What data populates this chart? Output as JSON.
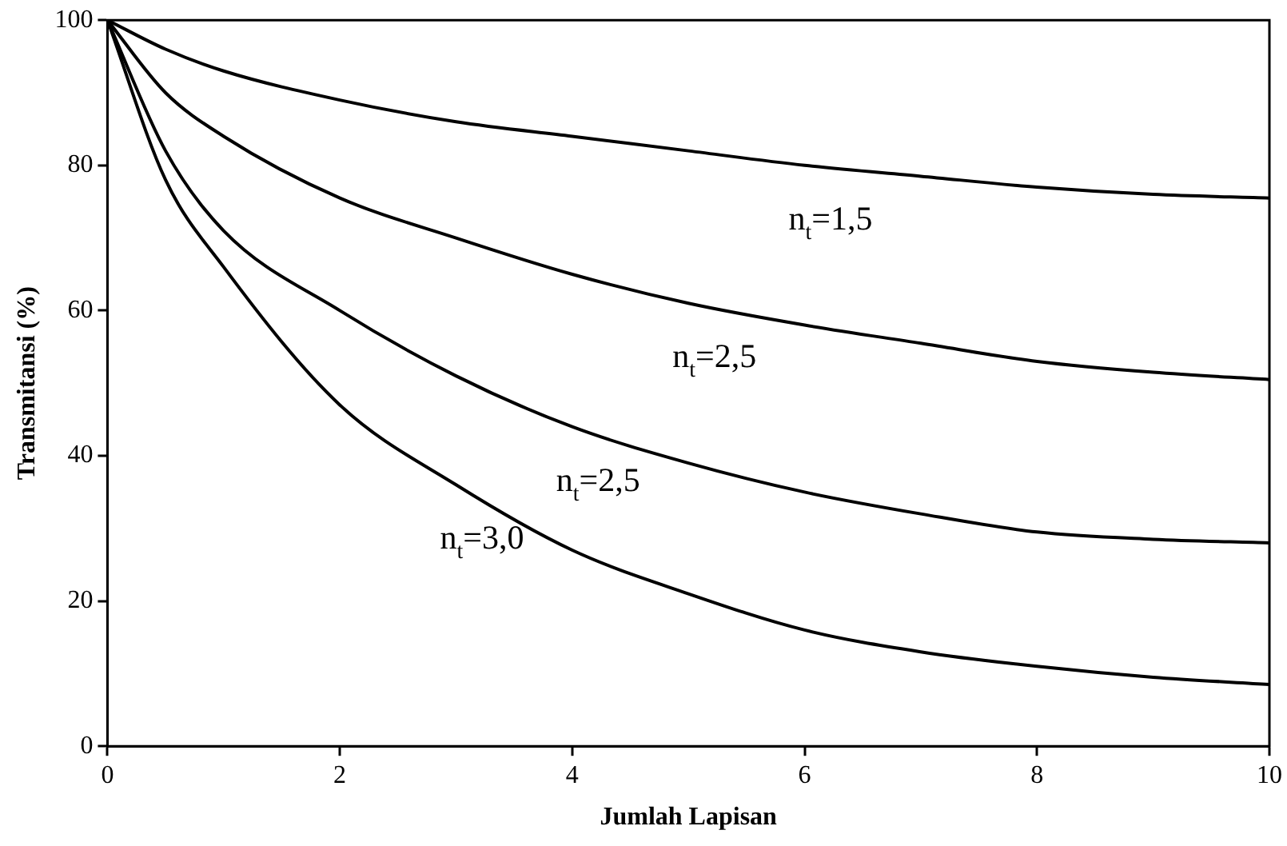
{
  "chart_data": {
    "type": "line",
    "xlabel": "Jumlah Lapisan",
    "ylabel": "Transmitansi (%)",
    "xlim": [
      0,
      10
    ],
    "ylim": [
      0,
      100
    ],
    "xticks": [
      0,
      2,
      4,
      6,
      8,
      10
    ],
    "yticks": [
      0,
      20,
      40,
      60,
      80,
      100
    ],
    "grid": false,
    "legend": false,
    "marker": "none",
    "line_style": "solid",
    "series": [
      {
        "name": "n$_{t}$=1,5",
        "color": "#000000",
        "x": [
          0,
          0.5,
          1,
          2,
          3,
          4,
          5,
          6,
          7,
          8,
          9,
          10
        ],
        "values": [
          100,
          96,
          93,
          89,
          86,
          84,
          82,
          80,
          78.5,
          77,
          76,
          75.5
        ]
      },
      {
        "name": "n$_{t}$=2,5",
        "color": "#000000",
        "x": [
          0,
          0.5,
          1,
          2,
          3,
          4,
          5,
          6,
          7,
          8,
          9,
          10
        ],
        "values": [
          100,
          90,
          84,
          75.5,
          70,
          65,
          61,
          58,
          55.5,
          53,
          51.5,
          50.5
        ]
      },
      {
        "name": "n$_{t}$=2,5",
        "color": "#000000",
        "x": [
          0,
          0.5,
          1,
          2,
          3,
          4,
          5,
          6,
          7,
          8,
          9,
          10
        ],
        "values": [
          100,
          82,
          71,
          60,
          51,
          44,
          39,
          35,
          32,
          29.5,
          28.5,
          28
        ]
      },
      {
        "name": "n$_{t}$=3,0",
        "color": "#000000",
        "x": [
          0,
          0.5,
          1,
          2,
          3,
          4,
          5,
          6,
          7,
          8,
          9,
          10
        ],
        "values": [
          100,
          78,
          66,
          47,
          36,
          27,
          21,
          16,
          13,
          11,
          9.5,
          8.5
        ]
      }
    ]
  }
}
